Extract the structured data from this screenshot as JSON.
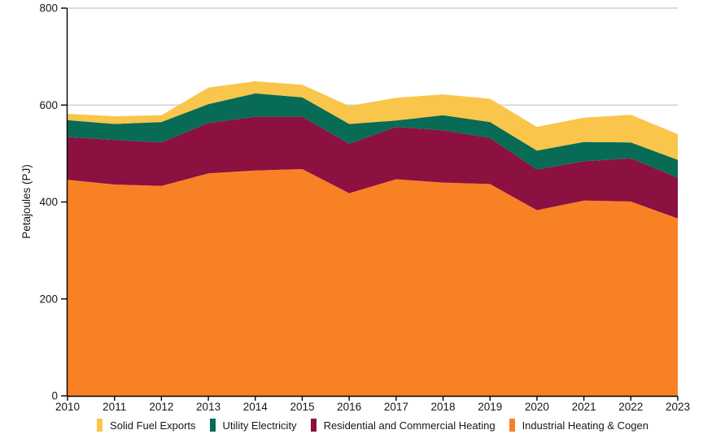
{
  "figure": {
    "background": "#ffffff",
    "axis_color": "#000000",
    "gridline_color": "#c8c8c8",
    "text_color": "#16161d"
  },
  "chart_data": {
    "type": "area",
    "stacked": true,
    "title": "",
    "xlabel": "",
    "ylabel": "Petajoules (PJ)",
    "ylim": [
      0,
      800
    ],
    "yticks": [
      0,
      200,
      400,
      600,
      800
    ],
    "grid": "horizontal",
    "legend_position": "bottom",
    "categories": [
      "2010",
      "2011",
      "2012",
      "2013",
      "2014",
      "2015",
      "2016",
      "2017",
      "2018",
      "2019",
      "2020",
      "2021",
      "2022",
      "2023"
    ],
    "series": [
      {
        "name": "Industrial Heating & Cogen",
        "color": "#F98125",
        "values": [
          446,
          436,
          433,
          459,
          465,
          468,
          418,
          447,
          440,
          437,
          383,
          403,
          401,
          366
        ]
      },
      {
        "name": "Residential and Commercial Heating",
        "color": "#8C1040",
        "values": [
          88,
          92,
          90,
          104,
          111,
          108,
          102,
          108,
          108,
          95,
          84,
          81,
          89,
          84
        ]
      },
      {
        "name": "Utility Electricity",
        "color": "#086B55",
        "values": [
          35,
          33,
          42,
          39,
          48,
          40,
          41,
          13,
          31,
          33,
          39,
          40,
          33,
          37
        ]
      },
      {
        "name": "Solid Fuel Exports",
        "color": "#FAC54B",
        "values": [
          13,
          16,
          14,
          34,
          25,
          26,
          37,
          47,
          43,
          48,
          49,
          50,
          57,
          53
        ]
      }
    ],
    "legend_items": [
      {
        "label": "Solid Fuel Exports",
        "color": "#FAC54B"
      },
      {
        "label": "Utility Electricity",
        "color": "#086B55"
      },
      {
        "label": "Residential and Commercial Heating",
        "color": "#8C1040"
      },
      {
        "label": "Industrial Heating & Cogen",
        "color": "#F98125"
      }
    ]
  }
}
